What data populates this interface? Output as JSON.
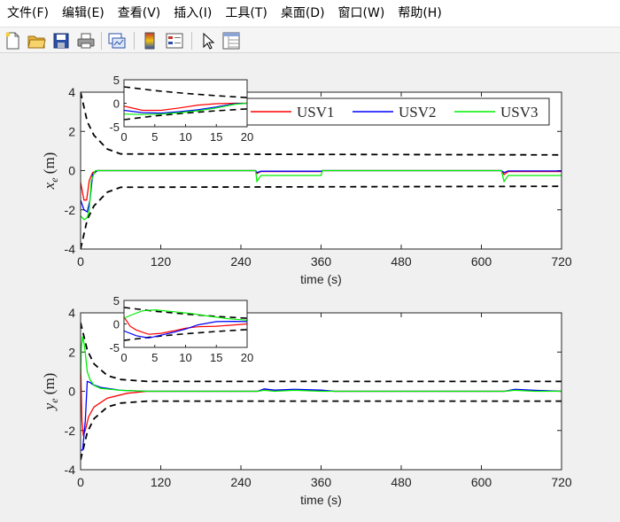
{
  "menu": [
    "文件(F)",
    "编辑(E)",
    "查看(V)",
    "插入(I)",
    "工具(T)",
    "桌面(D)",
    "窗口(W)",
    "帮助(H)"
  ],
  "toolbar_icons": [
    "new-file-icon",
    "open-folder-icon",
    "save-icon",
    "print-icon",
    "link-plot-icon",
    "colorbar-icon",
    "legend-icon",
    "pointer-icon",
    "property-inspector-icon"
  ],
  "colors": {
    "USV1": "#ff0000",
    "USV2": "#0000ff",
    "USV3": "#00ee00",
    "bound": "#000000"
  },
  "chart_data": [
    {
      "type": "line",
      "xlabel": "time (s)",
      "ylabel_var": "x",
      "ylabel_sub": "e",
      "ylabel_unit": " (m)",
      "xlim": [
        0,
        720
      ],
      "ylim": [
        -4,
        4
      ],
      "xticks": [
        0,
        120,
        240,
        360,
        480,
        600,
        720
      ],
      "yticks": [
        -4,
        -2,
        0,
        2,
        4
      ],
      "legend": {
        "placement": "top-right",
        "entries": [
          "USV1",
          "USV2",
          "USV3"
        ]
      },
      "bounds": {
        "style": "dashed",
        "upper": {
          "x": [
            0,
            10,
            20,
            40,
            60,
            720
          ],
          "y": [
            4,
            2.5,
            1.8,
            1.1,
            0.85,
            0.8
          ]
        },
        "lower": {
          "x": [
            0,
            10,
            20,
            40,
            60,
            720
          ],
          "y": [
            -4,
            -2.5,
            -1.8,
            -1.1,
            -0.85,
            -0.8
          ]
        }
      },
      "series": [
        {
          "name": "USV1",
          "x": [
            0,
            5,
            9,
            13,
            18,
            25,
            100,
            262,
            264,
            270,
            360,
            362,
            630,
            634,
            640,
            720
          ],
          "y": [
            -0.6,
            -1.5,
            -1.5,
            -0.5,
            -0.1,
            0,
            0,
            0,
            -0.15,
            -0.05,
            -0.05,
            0,
            0,
            -0.2,
            -0.05,
            -0.05
          ]
        },
        {
          "name": "USV2",
          "x": [
            0,
            5,
            10,
            14,
            18,
            25,
            100,
            262,
            264,
            270,
            360,
            362,
            630,
            634,
            640,
            720
          ],
          "y": [
            -1.5,
            -2.0,
            -2.1,
            -1.5,
            -0.2,
            0,
            0,
            0,
            -0.1,
            -0.03,
            -0.03,
            0,
            0,
            -0.1,
            -0.02,
            -0.02
          ]
        },
        {
          "name": "USV3",
          "x": [
            0,
            5,
            10,
            13,
            16,
            22,
            100,
            262,
            264,
            270,
            360,
            362,
            630,
            634,
            640,
            720
          ],
          "y": [
            -2.3,
            -2.5,
            -2.4,
            -2.0,
            -0.5,
            0,
            0,
            0,
            -0.55,
            -0.25,
            -0.25,
            0,
            0,
            -0.55,
            -0.25,
            -0.25
          ]
        }
      ],
      "inset": {
        "xlim": [
          0,
          20
        ],
        "ylim": [
          -5,
          5
        ],
        "xticks": [
          0,
          5,
          10,
          15,
          20
        ],
        "yticks": [
          -5,
          0,
          5
        ],
        "bounds": {
          "upper": {
            "x": [
              0,
              5,
              10,
              15,
              20
            ],
            "y": [
              3.5,
              2.7,
              2.1,
              1.6,
              1.2
            ]
          },
          "lower": {
            "x": [
              0,
              5,
              10,
              15,
              20
            ],
            "y": [
              -3.5,
              -2.7,
              -2.1,
              -1.6,
              -1.2
            ]
          }
        },
        "series": [
          {
            "name": "USV1",
            "x": [
              0,
              3,
              6,
              9,
              12,
              15,
              18,
              20
            ],
            "y": [
              -0.6,
              -1.5,
              -1.5,
              -1.0,
              -0.4,
              -0.1,
              0,
              0
            ]
          },
          {
            "name": "USV2",
            "x": [
              0,
              3,
              6,
              9,
              12,
              15,
              18,
              20
            ],
            "y": [
              -1.5,
              -2.0,
              -2.1,
              -1.8,
              -1.4,
              -0.8,
              -0.1,
              0
            ]
          },
          {
            "name": "USV3",
            "x": [
              0,
              3,
              6,
              9,
              12,
              15,
              18,
              20
            ],
            "y": [
              -2.3,
              -2.4,
              -2.3,
              -2.0,
              -1.6,
              -1.0,
              -0.2,
              0
            ]
          }
        ]
      }
    },
    {
      "type": "line",
      "xlabel": "time (s)",
      "ylabel_var": "y",
      "ylabel_sub": "e",
      "ylabel_unit": " (m)",
      "xlim": [
        0,
        720
      ],
      "ylim": [
        -4,
        4
      ],
      "xticks": [
        0,
        120,
        240,
        360,
        480,
        600,
        720
      ],
      "yticks": [
        -4,
        -2,
        0,
        2,
        4
      ],
      "bounds": {
        "style": "dashed",
        "upper": {
          "x": [
            0,
            10,
            20,
            40,
            60,
            100,
            720
          ],
          "y": [
            3.5,
            2.1,
            1.4,
            0.8,
            0.6,
            0.5,
            0.5
          ]
        },
        "lower": {
          "x": [
            0,
            10,
            20,
            40,
            60,
            100,
            720
          ],
          "y": [
            -3.5,
            -2.1,
            -1.4,
            -0.8,
            -0.6,
            -0.5,
            -0.5
          ]
        }
      },
      "series": [
        {
          "name": "USV1",
          "x": [
            0,
            2,
            4,
            7,
            12,
            20,
            40,
            70,
            100,
            265,
            275,
            290,
            320,
            360,
            380,
            635,
            650,
            680,
            720
          ],
          "y": [
            1.5,
            -1.5,
            -2.2,
            -2.0,
            -1.3,
            -0.8,
            -0.35,
            -0.1,
            0,
            0,
            0.1,
            0.05,
            0.08,
            0.05,
            0,
            0,
            0.08,
            0.04,
            0
          ]
        },
        {
          "name": "USV2",
          "x": [
            0,
            3,
            7,
            10,
            14,
            18,
            30,
            60,
            100,
            265,
            275,
            290,
            320,
            360,
            380,
            635,
            650,
            680,
            720
          ],
          "y": [
            -3.0,
            -3.0,
            -1.5,
            0.5,
            0.45,
            0.35,
            0.2,
            0.05,
            0,
            0,
            0.12,
            0.06,
            0.1,
            0.06,
            0,
            0,
            0.1,
            0.05,
            0
          ]
        },
        {
          "name": "USV3",
          "x": [
            0,
            1,
            3,
            6,
            10,
            14,
            20,
            30,
            60,
            100,
            265,
            275,
            290,
            320,
            360,
            380,
            635,
            650,
            680,
            720
          ],
          "y": [
            0.8,
            2.2,
            2.8,
            2.3,
            1.0,
            0.6,
            0.3,
            0.15,
            0.05,
            0,
            0,
            0.05,
            0,
            0.05,
            0,
            0,
            0,
            0.05,
            0,
            0
          ]
        }
      ],
      "inset": {
        "xlim": [
          0,
          20
        ],
        "ylim": [
          -5,
          5
        ],
        "xticks": [
          0,
          5,
          10,
          15,
          20
        ],
        "yticks": [
          -5,
          0,
          5
        ],
        "bounds": {
          "upper": {
            "x": [
              0,
              5,
              10,
              15,
              20
            ],
            "y": [
              3.5,
              2.7,
              2.1,
              1.6,
              1.2
            ]
          },
          "lower": {
            "x": [
              0,
              5,
              10,
              15,
              20
            ],
            "y": [
              -3.5,
              -2.7,
              -2.1,
              -1.6,
              -1.2
            ]
          }
        },
        "series": [
          {
            "name": "USV1",
            "x": [
              0,
              1,
              2,
              4,
              6,
              8,
              10,
              12,
              15,
              17,
              20
            ],
            "y": [
              1.5,
              -0.5,
              -1.3,
              -2.2,
              -2.0,
              -1.5,
              -0.9,
              -0.6,
              -0.5,
              -0.3,
              0
            ]
          },
          {
            "name": "USV2",
            "x": [
              0,
              2,
              4,
              6,
              8,
              10,
              12,
              15,
              18,
              20
            ],
            "y": [
              -1.5,
              -2.5,
              -3.0,
              -2.4,
              -1.8,
              -1.1,
              -0.2,
              0.5,
              0.55,
              0.5
            ]
          },
          {
            "name": "USV3",
            "x": [
              0,
              1,
              3,
              5,
              8,
              11,
              14,
              17,
              20
            ],
            "y": [
              1.2,
              1.8,
              2.8,
              3.0,
              2.6,
              2.2,
              1.6,
              1.1,
              0.8
            ]
          }
        ]
      }
    }
  ]
}
